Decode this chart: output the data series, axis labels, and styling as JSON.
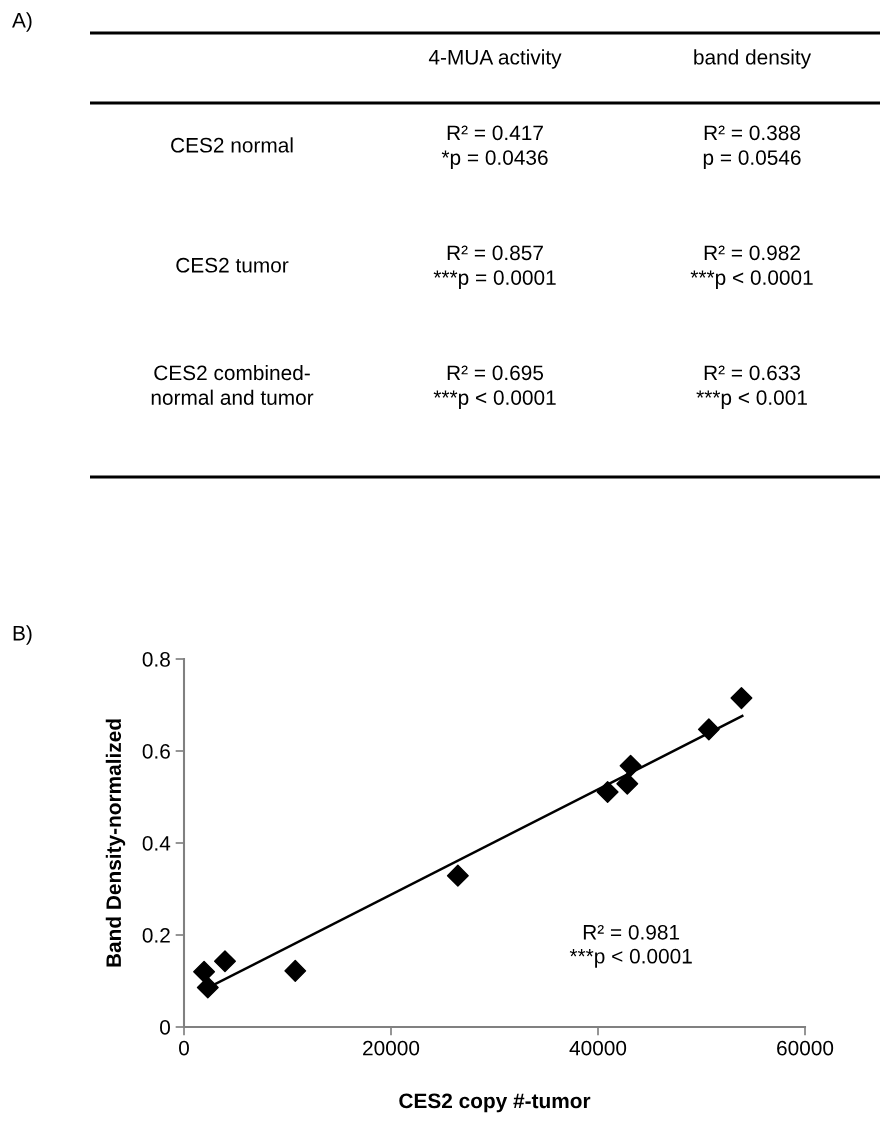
{
  "chart_data": [
    {
      "type": "other",
      "title": "A)",
      "annotations": [
        "4-MUA activity",
        "band density",
        "CES2 normal",
        "R² = 0.417\n*p = 0.0436",
        "R² = 0.388\np = 0.0546",
        "CES2 tumor",
        "R² = 0.857\n***p = 0.0001",
        "R² = 0.982\n***p < 0.0001",
        "CES2 combined-\nnormal and tumor",
        "R² = 0.695\n***p < 0.0001",
        "R² = 0.633\n***p < 0.001"
      ]
    },
    {
      "type": "scatter",
      "title": "B)",
      "xlabel": "CES2 copy #-tumor",
      "ylabel": "Band Density-normalized",
      "series": [
        {
          "type": "scatter",
          "x": [
            1940,
            2300,
            3960,
            10750,
            26460,
            40930,
            42830,
            43150,
            50710,
            53860
          ],
          "values": [
            0.12,
            0.086,
            0.143,
            0.122,
            0.329,
            0.511,
            0.529,
            0.568,
            0.647,
            0.715
          ],
          "color": "#000000",
          "marker": "diamond"
        },
        {
          "type": "line",
          "x": [
            2910,
            53940
          ],
          "values": [
            0.092,
            0.676
          ],
          "color": "#000000",
          "marker": "none",
          "line_style": "solid"
        }
      ],
      "xlim": [
        0,
        60000
      ],
      "ylim": [
        0,
        0.8
      ],
      "xticks": [
        0,
        20000,
        40000,
        60000
      ],
      "yticks": [
        0,
        0.2,
        0.4,
        0.6,
        0.8
      ],
      "grid": false,
      "legend": false,
      "annotations": [
        "R² = 0.981\n***p < 0.0001"
      ]
    }
  ]
}
